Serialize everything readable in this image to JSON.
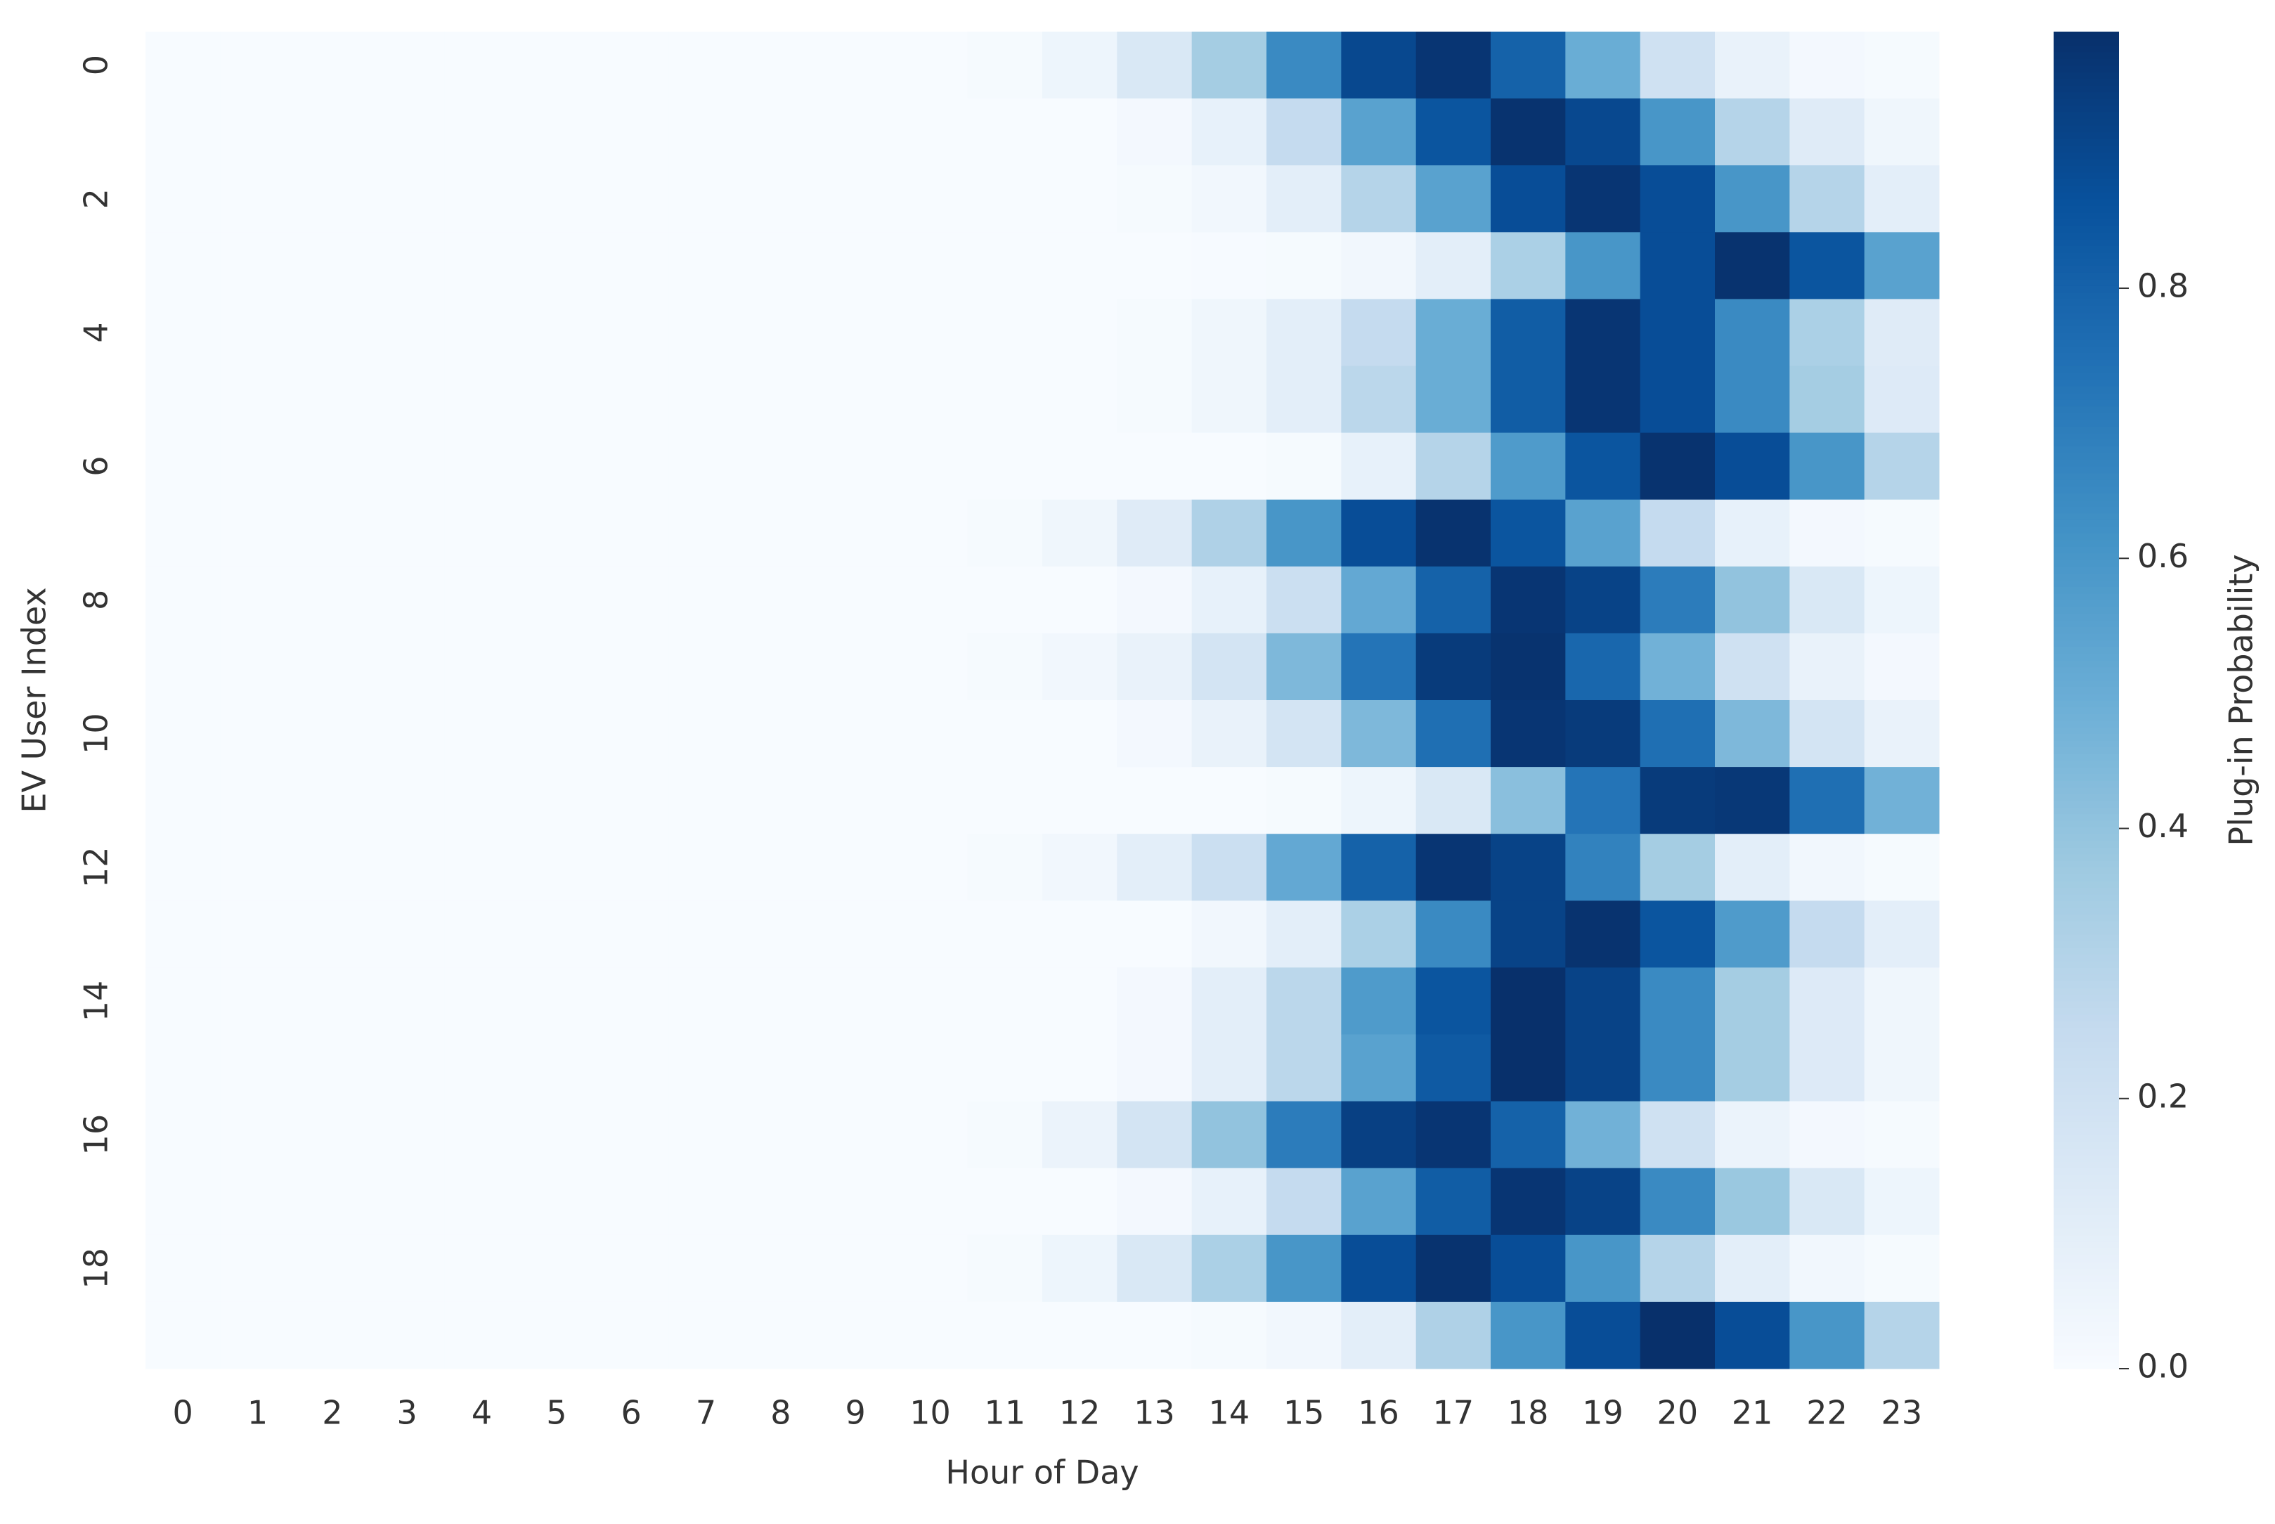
{
  "chart_data": {
    "type": "heatmap",
    "x_label": "Hour of Day",
    "y_label": "EV User Index",
    "colorbar_label": "Plug-in Probability",
    "colormap": "Blues",
    "x_categories": [
      "0",
      "1",
      "2",
      "3",
      "4",
      "5",
      "6",
      "7",
      "8",
      "9",
      "10",
      "11",
      "12",
      "13",
      "14",
      "15",
      "16",
      "17",
      "18",
      "19",
      "20",
      "21",
      "22",
      "23"
    ],
    "y_categories": [
      "0",
      null,
      "2",
      null,
      "4",
      null,
      "6",
      null,
      "8",
      null,
      "10",
      null,
      "12",
      null,
      "14",
      null,
      "16",
      null,
      "18",
      null
    ],
    "values": [
      [
        0,
        0,
        0,
        0,
        0,
        0,
        0,
        0,
        0,
        0,
        0,
        0.01,
        0.05,
        0.15,
        0.35,
        0.65,
        0.9,
        0.97,
        0.8,
        0.5,
        0.2,
        0.07,
        0.02,
        0.01
      ],
      [
        0,
        0,
        0,
        0,
        0,
        0,
        0,
        0,
        0,
        0,
        0,
        0,
        0,
        0.02,
        0.08,
        0.25,
        0.55,
        0.85,
        0.98,
        0.9,
        0.6,
        0.3,
        0.12,
        0.04
      ],
      [
        0,
        0,
        0,
        0,
        0,
        0,
        0,
        0,
        0,
        0,
        0,
        0,
        0,
        0.01,
        0.03,
        0.1,
        0.3,
        0.55,
        0.88,
        0.97,
        0.88,
        0.6,
        0.3,
        0.1
      ],
      [
        0,
        0,
        0,
        0,
        0,
        0,
        0,
        0,
        0,
        0,
        0,
        0,
        0,
        0,
        0.005,
        0.01,
        0.03,
        0.1,
        0.33,
        0.6,
        0.88,
        0.98,
        0.85,
        0.55
      ],
      [
        0,
        0,
        0,
        0,
        0,
        0,
        0,
        0,
        0,
        0,
        0,
        0,
        0,
        0.01,
        0.04,
        0.1,
        0.25,
        0.5,
        0.82,
        0.97,
        0.88,
        0.65,
        0.33,
        0.12
      ],
      [
        0,
        0,
        0,
        0,
        0,
        0,
        0,
        0,
        0,
        0,
        0,
        0,
        0,
        0.01,
        0.04,
        0.1,
        0.28,
        0.5,
        0.82,
        0.97,
        0.88,
        0.65,
        0.35,
        0.13
      ],
      [
        0,
        0,
        0,
        0,
        0,
        0,
        0,
        0,
        0,
        0,
        0,
        0,
        0,
        0,
        0,
        0.01,
        0.08,
        0.3,
        0.58,
        0.85,
        0.98,
        0.88,
        0.6,
        0.3
      ],
      [
        0,
        0,
        0,
        0,
        0,
        0,
        0,
        0,
        0,
        0,
        0,
        0.01,
        0.04,
        0.12,
        0.32,
        0.6,
        0.88,
        0.98,
        0.85,
        0.55,
        0.25,
        0.08,
        0.02,
        0.01
      ],
      [
        0,
        0,
        0,
        0,
        0,
        0,
        0,
        0,
        0,
        0,
        0,
        0,
        0,
        0.02,
        0.08,
        0.22,
        0.52,
        0.8,
        0.97,
        0.92,
        0.7,
        0.4,
        0.15,
        0.05
      ],
      [
        0,
        0,
        0,
        0,
        0,
        0,
        0,
        0,
        0,
        0,
        0,
        0.01,
        0.03,
        0.07,
        0.18,
        0.45,
        0.73,
        0.95,
        0.98,
        0.78,
        0.48,
        0.2,
        0.07,
        0.02
      ],
      [
        0,
        0,
        0,
        0,
        0,
        0,
        0,
        0,
        0,
        0,
        0,
        0,
        0,
        0.02,
        0.07,
        0.18,
        0.45,
        0.75,
        0.97,
        0.95,
        0.75,
        0.45,
        0.18,
        0.07
      ],
      [
        0,
        0,
        0,
        0,
        0,
        0,
        0,
        0,
        0,
        0,
        0,
        0,
        0,
        0,
        0,
        0.01,
        0.05,
        0.15,
        0.42,
        0.73,
        0.95,
        0.96,
        0.75,
        0.48
      ],
      [
        0,
        0,
        0,
        0,
        0,
        0,
        0,
        0,
        0,
        0,
        0,
        0.01,
        0.03,
        0.1,
        0.22,
        0.52,
        0.8,
        0.97,
        0.92,
        0.68,
        0.35,
        0.1,
        0.03,
        0.01
      ],
      [
        0,
        0,
        0,
        0,
        0,
        0,
        0,
        0,
        0,
        0,
        0,
        0,
        0,
        0,
        0.03,
        0.1,
        0.33,
        0.65,
        0.92,
        0.98,
        0.85,
        0.58,
        0.25,
        0.1
      ],
      [
        0,
        0,
        0,
        0,
        0,
        0,
        0,
        0,
        0,
        0,
        0,
        0,
        0,
        0.02,
        0.1,
        0.28,
        0.58,
        0.85,
        0.99,
        0.92,
        0.65,
        0.35,
        0.13,
        0.04
      ],
      [
        0,
        0,
        0,
        0,
        0,
        0,
        0,
        0,
        0,
        0,
        0,
        0,
        0,
        0.02,
        0.1,
        0.28,
        0.55,
        0.83,
        0.99,
        0.92,
        0.65,
        0.35,
        0.13,
        0.04
      ],
      [
        0,
        0,
        0,
        0,
        0,
        0,
        0,
        0,
        0,
        0,
        0,
        0.01,
        0.06,
        0.18,
        0.4,
        0.7,
        0.93,
        0.97,
        0.8,
        0.48,
        0.2,
        0.06,
        0.02,
        0.01
      ],
      [
        0,
        0,
        0,
        0,
        0,
        0,
        0,
        0,
        0,
        0,
        0,
        0,
        0,
        0.02,
        0.08,
        0.25,
        0.55,
        0.82,
        0.97,
        0.92,
        0.65,
        0.38,
        0.15,
        0.05
      ],
      [
        0,
        0,
        0,
        0,
        0,
        0,
        0,
        0,
        0,
        0,
        0,
        0.01,
        0.05,
        0.15,
        0.33,
        0.6,
        0.88,
        0.98,
        0.88,
        0.6,
        0.3,
        0.1,
        0.03,
        0.01
      ],
      [
        0,
        0,
        0,
        0,
        0,
        0,
        0,
        0,
        0,
        0,
        0,
        0,
        0,
        0,
        0.01,
        0.03,
        0.1,
        0.32,
        0.6,
        0.88,
        0.99,
        0.88,
        0.6,
        0.3
      ]
    ],
    "clim": [
      0,
      0.99
    ],
    "cticks": [
      {
        "value": 0,
        "label": "0.0"
      },
      0.2,
      0.4,
      0.6,
      0.8
    ]
  }
}
